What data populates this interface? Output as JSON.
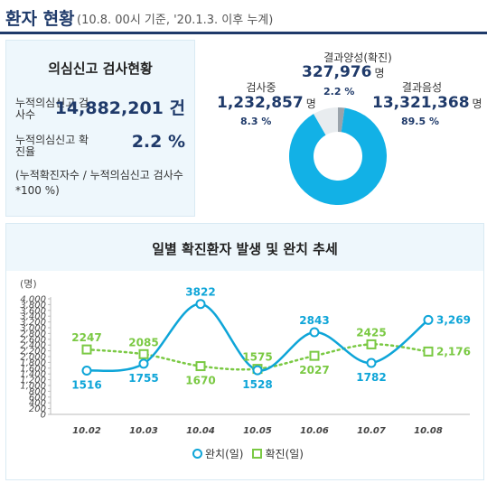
{
  "header": {
    "title": "환자 현황",
    "subtitle": "(10.8. 00시 기준, '20.1.3. 이후 누계)"
  },
  "test_summary": {
    "title": "의심신고 검사현황",
    "tested_label": "누적의심신고 검사수",
    "tested_value": "14,882,201 건",
    "positive_rate_label": "누적의심신고 확진율",
    "positive_rate_value": "2.2 %",
    "note": "(누적확진자수 / 누적의심신고 검사수 *100 %)"
  },
  "pie": {
    "testing": {
      "label": "검사중",
      "value": "1,232,857",
      "unit": "명",
      "pct": "8.3 %"
    },
    "positive": {
      "label": "결과양성(확진)",
      "value": "327,976",
      "unit": "명",
      "pct": "2.2 %"
    },
    "negative": {
      "label": "결과음성",
      "value": "13,321,368",
      "unit": "명",
      "pct": "89.5 %"
    },
    "colors": {
      "negative": "#12b1e6",
      "testing": "#e8ecef",
      "positive": "#9aa3ab"
    }
  },
  "trend": {
    "title": "일별 확진환자 발생 및 완치 추세",
    "legend_recovered": "완치(일)",
    "legend_confirmed": "확진(일)"
  },
  "chart_data": {
    "type": "line",
    "title": "일별 확진환자 발생 및 완치 추세",
    "ylabel": "(명)",
    "ylim": [
      0,
      4000
    ],
    "yticks": [
      0,
      200,
      400,
      600,
      800,
      1000,
      1200,
      1400,
      1600,
      1800,
      2000,
      2200,
      2400,
      2600,
      2800,
      3000,
      3200,
      3400,
      3600,
      3800,
      4000
    ],
    "categories": [
      "10.02",
      "10.03",
      "10.04",
      "10.05",
      "10.06",
      "10.07",
      "10.08"
    ],
    "legend_placement": "bottom",
    "grid": false,
    "series": [
      {
        "name": "완치(일)",
        "values": [
          1516,
          1755,
          3822,
          1528,
          2843,
          1782,
          3269
        ],
        "labels": [
          "1516",
          "1755",
          "3822",
          "1528",
          "2843",
          "1782",
          "3,269"
        ],
        "color": "#0ea5d8",
        "style": "smooth-solid",
        "marker": "circle"
      },
      {
        "name": "확진(일)",
        "values": [
          2247,
          2085,
          1670,
          1575,
          2027,
          2425,
          2176
        ],
        "labels": [
          "2247",
          "2085",
          "1670",
          "1575",
          "2027",
          "2425",
          "2,176"
        ],
        "color": "#7ac943",
        "style": "dotted",
        "marker": "square"
      }
    ]
  }
}
